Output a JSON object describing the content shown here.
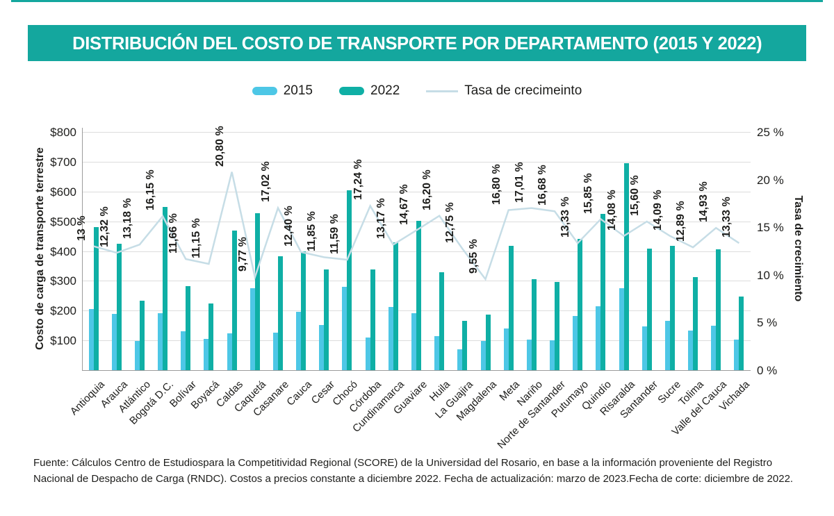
{
  "page": {
    "title": "DISTRIBUCIÓN DEL COSTO DE TRANSPORTE POR DEPARTAMENTO (2015 Y 2022)",
    "footer": "Fuente: Cálculos Centro de Estudiospara la Competitividad Regional (SCORE) de la Universidad del Rosario, en base a la información proveniente del Registro Nacional de Despacho de Carga (RNDC). Costos a precios constante a diciembre 2022. Fecha de actualización: marzo de 2023.Fecha de corte: diciembre de 2022."
  },
  "colors": {
    "accent_teal": "#14a79e",
    "bar_2015": "#4dc7e6",
    "bar_2022": "#0fafa5",
    "growth_line": "#c6dde6",
    "text": "#1d1d1b",
    "grid": "#dcdcdc",
    "axis": "#9b9b9b"
  },
  "legend": {
    "items": [
      {
        "label": "2015",
        "type": "bar",
        "color": "#4dc7e6"
      },
      {
        "label": "2022",
        "type": "bar",
        "color": "#0fafa5"
      },
      {
        "label": "Tasa de crecimeinto",
        "type": "line",
        "color": "#c6dde6"
      }
    ]
  },
  "chart_data": {
    "type": "bar",
    "subtype": "grouped bars with growth-rate line on secondary axis",
    "title": "DISTRIBUCIÓN DEL COSTO DE TRANSPORTE POR DEPARTAMENTO (2015 Y 2022)",
    "categories": [
      "Antioquia",
      "Arauca",
      "Atlántico",
      "Bogotá D.C.",
      "Bolívar",
      "Boyacá",
      "Caldas",
      "Caquetá",
      "Casanare",
      "Cauca",
      "Cesar",
      "Chocó",
      "Córdoba",
      "Cundinamarca",
      "Guaviare",
      "Huila",
      "La Guajira",
      "Magdalena",
      "Meta",
      "Nariño",
      "Norte de Santander",
      "Putumayo",
      "Quindío",
      "Risaralda",
      "Santander",
      "Sucre",
      "Tolima",
      "Valle del Cauca",
      "Vichada"
    ],
    "series": [
      {
        "name": "2015",
        "type": "bar",
        "color": "#4dc7e6",
        "values": [
          205,
          188,
          98,
          192,
          130,
          106,
          124,
          275,
          127,
          195,
          152,
          280,
          110,
          213,
          192,
          114,
          70,
          98,
          140,
          102,
          101,
          183,
          215,
          276,
          146,
          166,
          132,
          150,
          102
        ]
      },
      {
        "name": "2022",
        "type": "bar",
        "color": "#0fafa5",
        "values": [
          480,
          424,
          233,
          548,
          283,
          224,
          468,
          528,
          382,
          400,
          338,
          603,
          338,
          430,
          502,
          330,
          165,
          186,
          418,
          306,
          297,
          440,
          525,
          695,
          407,
          417,
          312,
          405,
          247
        ]
      },
      {
        "name": "Tasa de crecimeinto",
        "type": "line",
        "color": "#c6dde6",
        "axis": "right",
        "values": [
          13.0,
          12.32,
          13.18,
          16.15,
          11.66,
          11.15,
          20.8,
          9.77,
          17.02,
          12.4,
          11.85,
          11.59,
          17.24,
          13.17,
          14.67,
          16.2,
          12.75,
          9.55,
          16.8,
          17.01,
          16.68,
          13.33,
          15.85,
          14.08,
          15.6,
          14.09,
          12.89,
          14.93,
          13.33
        ]
      }
    ],
    "growth_labels": [
      "13 %",
      "12,32 %",
      "13,18 %",
      "16,15 %",
      "11,66 %",
      "11,15 %",
      "20,80 %",
      "9,77 %",
      "17,02 %",
      "12,40 %",
      "11,85 %",
      "11,59 %",
      "17,24 %",
      "13,17 %",
      "14,67 %",
      "16,20 %",
      "12,75 %",
      "9,55 %",
      "16,80 %",
      "17,01 %",
      "16,68 %",
      "13,33 %",
      "15,85 %",
      "14,08 %",
      "15,60 %",
      "14,09 %",
      "12,89 %",
      "14,93 %",
      "13,33 %"
    ],
    "y_left": {
      "label": "Costo de carga de transporte terrestre",
      "ticks": [
        "$100",
        "$200",
        "$300",
        "$400",
        "$500",
        "$600",
        "$700",
        "$800"
      ],
      "tick_values": [
        100,
        200,
        300,
        400,
        500,
        600,
        700,
        800
      ],
      "range": [
        0,
        800
      ]
    },
    "y_right": {
      "label": "Tasa de crecimiento",
      "ticks": [
        "0 %",
        "5 %",
        "10 %",
        "15 %",
        "20 %",
        "25 %"
      ],
      "tick_values": [
        0,
        5,
        10,
        15,
        20,
        25
      ],
      "range": [
        0,
        25
      ]
    },
    "grid": true,
    "legend_position": "top-center",
    "note": "2015/2022 bar values estimated from gridlines; growth-rate percentages are printed on chart"
  }
}
